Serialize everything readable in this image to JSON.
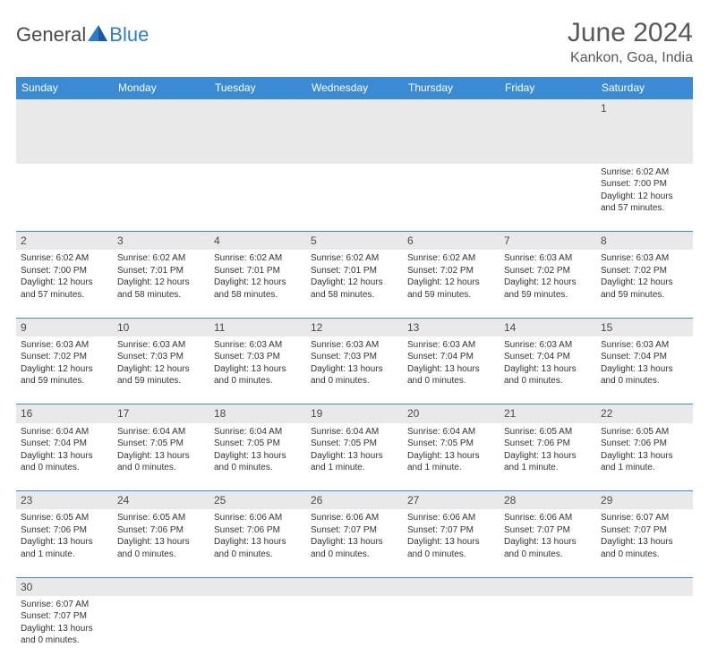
{
  "logo": {
    "text1": "General",
    "text2": "Blue"
  },
  "title": "June 2024",
  "location": "Kankon, Goa, India",
  "colors": {
    "header_bg": "#3b8bd4",
    "header_text": "#ffffff",
    "daynum_bg": "#e9e9e9",
    "row_border": "#3b8bd4",
    "logo_blue": "#2d7dc7",
    "body_text": "#333333",
    "title_text": "#595959"
  },
  "weekdays": [
    "Sunday",
    "Monday",
    "Tuesday",
    "Wednesday",
    "Thursday",
    "Friday",
    "Saturday"
  ],
  "weeks": [
    [
      null,
      null,
      null,
      null,
      null,
      null,
      {
        "n": "1",
        "sr": "6:02 AM",
        "ss": "7:00 PM",
        "dl": "12 hours and 57 minutes."
      }
    ],
    [
      {
        "n": "2",
        "sr": "6:02 AM",
        "ss": "7:00 PM",
        "dl": "12 hours and 57 minutes."
      },
      {
        "n": "3",
        "sr": "6:02 AM",
        "ss": "7:01 PM",
        "dl": "12 hours and 58 minutes."
      },
      {
        "n": "4",
        "sr": "6:02 AM",
        "ss": "7:01 PM",
        "dl": "12 hours and 58 minutes."
      },
      {
        "n": "5",
        "sr": "6:02 AM",
        "ss": "7:01 PM",
        "dl": "12 hours and 58 minutes."
      },
      {
        "n": "6",
        "sr": "6:02 AM",
        "ss": "7:02 PM",
        "dl": "12 hours and 59 minutes."
      },
      {
        "n": "7",
        "sr": "6:03 AM",
        "ss": "7:02 PM",
        "dl": "12 hours and 59 minutes."
      },
      {
        "n": "8",
        "sr": "6:03 AM",
        "ss": "7:02 PM",
        "dl": "12 hours and 59 minutes."
      }
    ],
    [
      {
        "n": "9",
        "sr": "6:03 AM",
        "ss": "7:02 PM",
        "dl": "12 hours and 59 minutes."
      },
      {
        "n": "10",
        "sr": "6:03 AM",
        "ss": "7:03 PM",
        "dl": "12 hours and 59 minutes."
      },
      {
        "n": "11",
        "sr": "6:03 AM",
        "ss": "7:03 PM",
        "dl": "13 hours and 0 minutes."
      },
      {
        "n": "12",
        "sr": "6:03 AM",
        "ss": "7:03 PM",
        "dl": "13 hours and 0 minutes."
      },
      {
        "n": "13",
        "sr": "6:03 AM",
        "ss": "7:04 PM",
        "dl": "13 hours and 0 minutes."
      },
      {
        "n": "14",
        "sr": "6:03 AM",
        "ss": "7:04 PM",
        "dl": "13 hours and 0 minutes."
      },
      {
        "n": "15",
        "sr": "6:03 AM",
        "ss": "7:04 PM",
        "dl": "13 hours and 0 minutes."
      }
    ],
    [
      {
        "n": "16",
        "sr": "6:04 AM",
        "ss": "7:04 PM",
        "dl": "13 hours and 0 minutes."
      },
      {
        "n": "17",
        "sr": "6:04 AM",
        "ss": "7:05 PM",
        "dl": "13 hours and 0 minutes."
      },
      {
        "n": "18",
        "sr": "6:04 AM",
        "ss": "7:05 PM",
        "dl": "13 hours and 0 minutes."
      },
      {
        "n": "19",
        "sr": "6:04 AM",
        "ss": "7:05 PM",
        "dl": "13 hours and 1 minute."
      },
      {
        "n": "20",
        "sr": "6:04 AM",
        "ss": "7:05 PM",
        "dl": "13 hours and 1 minute."
      },
      {
        "n": "21",
        "sr": "6:05 AM",
        "ss": "7:06 PM",
        "dl": "13 hours and 1 minute."
      },
      {
        "n": "22",
        "sr": "6:05 AM",
        "ss": "7:06 PM",
        "dl": "13 hours and 1 minute."
      }
    ],
    [
      {
        "n": "23",
        "sr": "6:05 AM",
        "ss": "7:06 PM",
        "dl": "13 hours and 1 minute."
      },
      {
        "n": "24",
        "sr": "6:05 AM",
        "ss": "7:06 PM",
        "dl": "13 hours and 0 minutes."
      },
      {
        "n": "25",
        "sr": "6:06 AM",
        "ss": "7:06 PM",
        "dl": "13 hours and 0 minutes."
      },
      {
        "n": "26",
        "sr": "6:06 AM",
        "ss": "7:07 PM",
        "dl": "13 hours and 0 minutes."
      },
      {
        "n": "27",
        "sr": "6:06 AM",
        "ss": "7:07 PM",
        "dl": "13 hours and 0 minutes."
      },
      {
        "n": "28",
        "sr": "6:06 AM",
        "ss": "7:07 PM",
        "dl": "13 hours and 0 minutes."
      },
      {
        "n": "29",
        "sr": "6:07 AM",
        "ss": "7:07 PM",
        "dl": "13 hours and 0 minutes."
      }
    ],
    [
      {
        "n": "30",
        "sr": "6:07 AM",
        "ss": "7:07 PM",
        "dl": "13 hours and 0 minutes."
      },
      null,
      null,
      null,
      null,
      null,
      null
    ]
  ],
  "labels": {
    "sunrise": "Sunrise:",
    "sunset": "Sunset:",
    "daylight": "Daylight:"
  }
}
